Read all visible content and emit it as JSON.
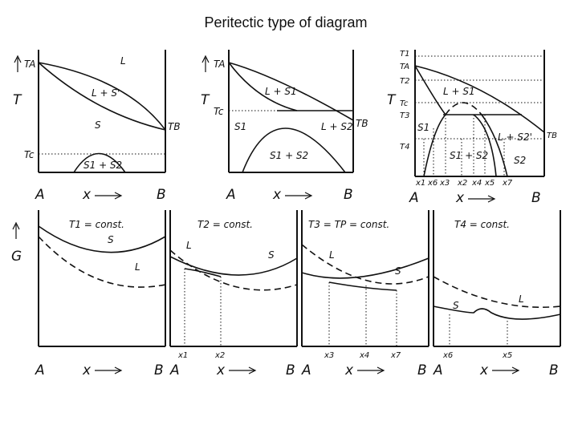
{
  "title": "Peritectic type of diagram",
  "labels": {
    "T": "T",
    "G": "G",
    "A": "A",
    "B": "B",
    "x": "x",
    "TA": "TA",
    "TB": "TB",
    "Tc": "Tc",
    "T1": "T1",
    "T2": "T2",
    "T3": "T3",
    "T4": "T4",
    "L": "L",
    "S": "S",
    "S1": "S1",
    "S2": "S2",
    "L_plus_S": "L + S'",
    "L_plus_S1": "L + S1",
    "L_plus_S2": "L + S2",
    "S1_plus_S2": "S1 + S2",
    "L_plus_S2_prime": "L + S2'",
    "x1": "x1",
    "x2": "x2",
    "x3": "x3",
    "x4": "x4",
    "x5": "x5",
    "x6": "x6",
    "x7": "x7",
    "panel_T1": "T1 = const.",
    "panel_T2": "T2 = const.",
    "panel_T3": "T3 = TP = const.",
    "panel_T4": "T4 = const."
  }
}
